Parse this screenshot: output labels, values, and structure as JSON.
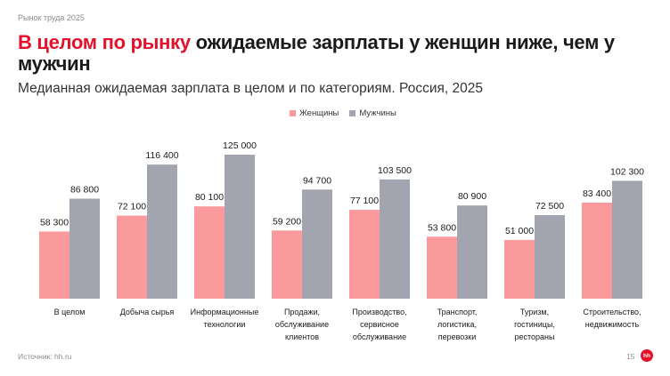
{
  "header": {
    "kicker": "Рынок труда 2025",
    "title_highlight": "В целом по рынку",
    "title_rest": "ожидаемые зарплаты у женщин ниже, чем у мужчин",
    "subtitle": "Медианная ожидаемая зарплата в целом и по категориям. Россия, 2025"
  },
  "footer": {
    "source": "Источник: hh.ru",
    "page_number": "15",
    "logo_text": "hh"
  },
  "colors": {
    "women": "#fa9a9c",
    "men": "#a2a5b0",
    "accent": "#e3122a"
  },
  "chart_data": {
    "type": "bar",
    "categories": [
      [
        "В целом"
      ],
      [
        "Добыча сырья"
      ],
      [
        "Информационные",
        "технологии"
      ],
      [
        "Продажи,",
        "обслуживание",
        "клиентов"
      ],
      [
        "Производство,",
        "сервисное",
        "обслуживание"
      ],
      [
        "Транспорт,",
        "логистика,",
        "перевозки"
      ],
      [
        "Туризм,",
        "гостиницы,",
        "рестораны"
      ],
      [
        "Строительство,",
        "недвижимость"
      ]
    ],
    "series": [
      {
        "name": "Женщины",
        "values": [
          58300,
          72100,
          80100,
          59200,
          77100,
          53800,
          51000,
          83400
        ],
        "labels": [
          "58 300",
          "72 100",
          "80 100",
          "59 200",
          "77 100",
          "53 800",
          "51 000",
          "83 400"
        ]
      },
      {
        "name": "Мужчины",
        "values": [
          86800,
          116400,
          125000,
          94700,
          103500,
          80900,
          72500,
          102300
        ],
        "labels": [
          "86 800",
          "116 400",
          "125 000",
          "94 700",
          "103 500",
          "80 900",
          "72 500",
          "102 300"
        ]
      }
    ],
    "legend_position": "top-center",
    "grid": false,
    "ylim": [
      0,
      125000
    ]
  }
}
